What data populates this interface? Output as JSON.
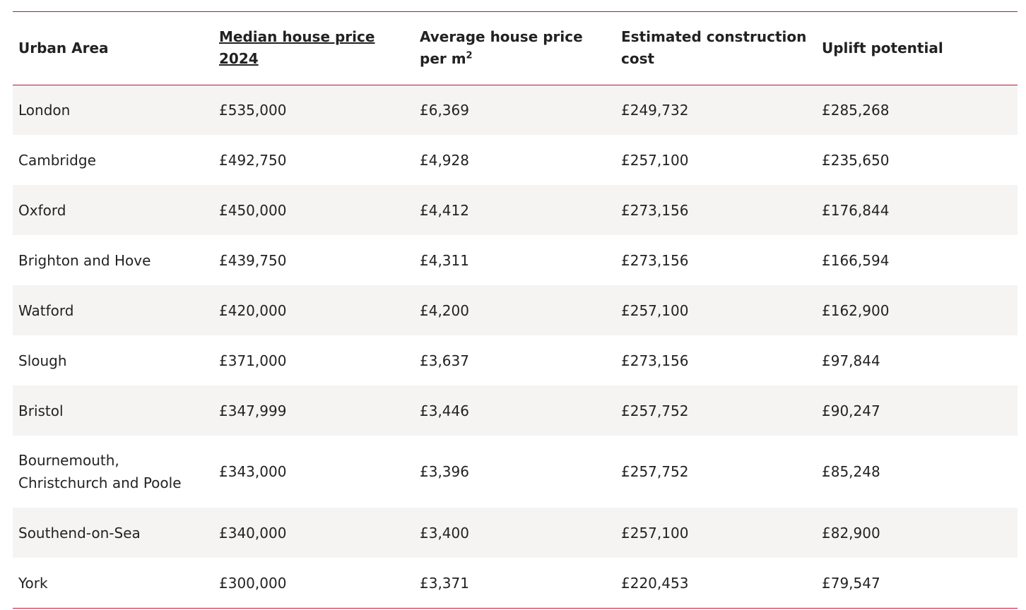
{
  "table": {
    "headers": {
      "urban_area": "Urban Area",
      "median_price": "Median house price 2024",
      "avg_price_m2": "Average house price per m",
      "avg_price_m2_sup": "2",
      "construction_cost": "Estimated construction cost",
      "uplift": "Uplift potential"
    },
    "rows": [
      {
        "area": "London",
        "median": "£535,000",
        "per_m2": "£6,369",
        "construction": "£249,732",
        "uplift": "£285,268"
      },
      {
        "area": "Cambridge",
        "median": "£492,750",
        "per_m2": "£4,928",
        "construction": "£257,100",
        "uplift": "£235,650"
      },
      {
        "area": "Oxford",
        "median": "£450,000",
        "per_m2": "£4,412",
        "construction": "£273,156",
        "uplift": "£176,844"
      },
      {
        "area": "Brighton and Hove",
        "median": "£439,750",
        "per_m2": "£4,311",
        "construction": "£273,156",
        "uplift": "£166,594"
      },
      {
        "area": "Watford",
        "median": "£420,000",
        "per_m2": "£4,200",
        "construction": "£257,100",
        "uplift": "£162,900"
      },
      {
        "area": "Slough",
        "median": "£371,000",
        "per_m2": "£3,637",
        "construction": "£273,156",
        "uplift": "£97,844"
      },
      {
        "area": "Bristol",
        "median": "£347,999",
        "per_m2": "£3,446",
        "construction": "£257,752",
        "uplift": "£90,247"
      },
      {
        "area": "Bournemouth, Christchurch and Poole",
        "median": "£343,000",
        "per_m2": "£3,396",
        "construction": "£257,752",
        "uplift": "£85,248"
      },
      {
        "area": "Southend-on-Sea",
        "median": "£340,000",
        "per_m2": "£3,400",
        "construction": "£257,100",
        "uplift": "£82,900"
      },
      {
        "area": "York",
        "median": "£300,000",
        "per_m2": "£3,371",
        "construction": "£220,453",
        "uplift": "£79,547"
      }
    ]
  },
  "colors": {
    "rule": "#c8102e",
    "stripe": "#f5f4f3",
    "text": "#222222"
  }
}
